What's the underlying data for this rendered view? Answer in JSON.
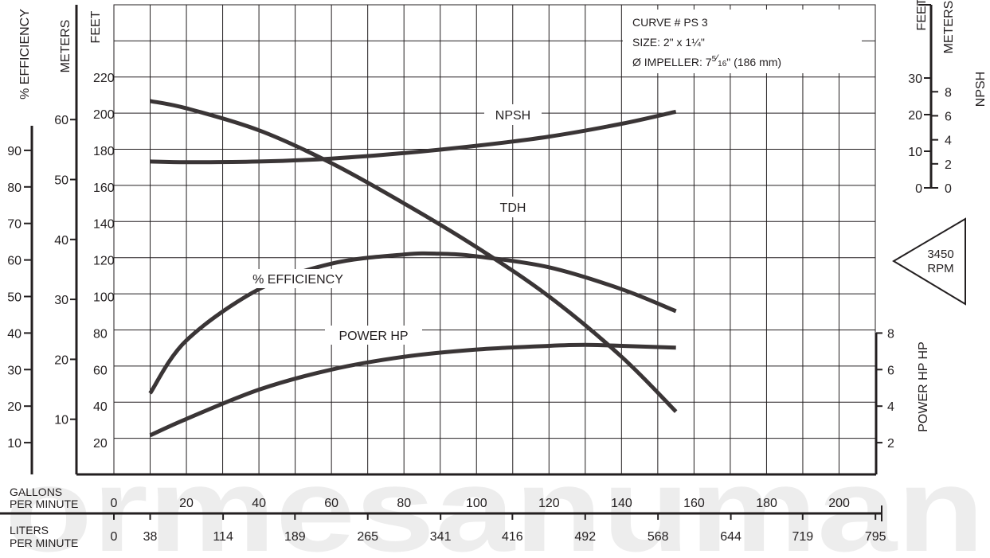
{
  "chart_data": {
    "type": "line",
    "watermark": "ormesanuman",
    "curve_info": {
      "curve": "CURVE # PS 3",
      "size": "SIZE: 2\" x 1¼\"",
      "impeller_prefix": "Ø IMPELLER: 7",
      "impeller_num": "5",
      "impeller_den": "16",
      "impeller_suffix": "\" (186 mm)"
    },
    "rpm_badge": {
      "value": "3450",
      "unit": "RPM"
    },
    "x_axis": {
      "gpm_label_line1": "GALLONS",
      "gpm_label_line2": "PER MINUTE",
      "gpm_ticks": [
        "0",
        "20",
        "40",
        "60",
        "80",
        "100",
        "120",
        "140",
        "160",
        "180",
        "200"
      ],
      "lpm_label_line1": "LITERS",
      "lpm_label_line2": "PER MINUTE",
      "lpm_ticks": [
        "0",
        "38",
        "114",
        "189",
        "265",
        "341",
        "416",
        "492",
        "568",
        "644",
        "719",
        "795"
      ],
      "xlim": [
        0,
        210
      ]
    },
    "left_axes": {
      "efficiency": {
        "label": "% EFFICIENCY",
        "ticks": [
          "10",
          "20",
          "30",
          "40",
          "50",
          "60",
          "70",
          "80",
          "90"
        ]
      },
      "meters": {
        "label": "METERS",
        "ticks": [
          "10",
          "20",
          "30",
          "40",
          "50",
          "60"
        ]
      },
      "feet": {
        "label": "FEET",
        "ticks": [
          "20",
          "40",
          "60",
          "80",
          "100",
          "120",
          "140",
          "160",
          "180",
          "200",
          "220"
        ],
        "ylim": [
          0,
          240
        ]
      }
    },
    "right_axes": {
      "npsh": {
        "feet_label": "FEET",
        "meters_label": "METERS",
        "label": "NPSH",
        "feet_ticks": [
          "0",
          "10",
          "20",
          "30"
        ],
        "meter_ticks": [
          "0",
          "2",
          "4",
          "6",
          "8"
        ]
      },
      "power": {
        "label": "POWER HP HP",
        "ticks": [
          "2",
          "4",
          "6",
          "8"
        ]
      }
    },
    "series": [
      {
        "name": "NPSH",
        "unit": "ft (NPSH scale)",
        "x": [
          10,
          20,
          40,
          60,
          80,
          100,
          120,
          140,
          155
        ],
        "y": [
          7.2,
          7.0,
          7.2,
          8.0,
          9.5,
          11.5,
          14.0,
          17.5,
          20.8
        ]
      },
      {
        "name": "TDH",
        "unit": "ft",
        "x": [
          10,
          20,
          40,
          60,
          80,
          100,
          120,
          140,
          155
        ],
        "y": [
          207,
          203,
          191,
          173,
          151,
          127,
          100,
          67,
          37
        ]
      },
      {
        "name": "% EFFICIENCY",
        "unit": "%",
        "x": [
          10,
          20,
          40,
          60,
          80,
          90,
          100,
          120,
          140,
          155
        ],
        "y": [
          23.5,
          38,
          52,
          59,
          61.5,
          61.7,
          61,
          58,
          52,
          46
        ]
      },
      {
        "name": "POWER HP",
        "unit": "HP",
        "x": [
          10,
          20,
          40,
          60,
          80,
          100,
          120,
          130,
          140,
          155
        ],
        "y": [
          2.4,
          3.3,
          4.9,
          6.0,
          6.7,
          7.1,
          7.3,
          7.35,
          7.3,
          7.2
        ]
      }
    ]
  }
}
